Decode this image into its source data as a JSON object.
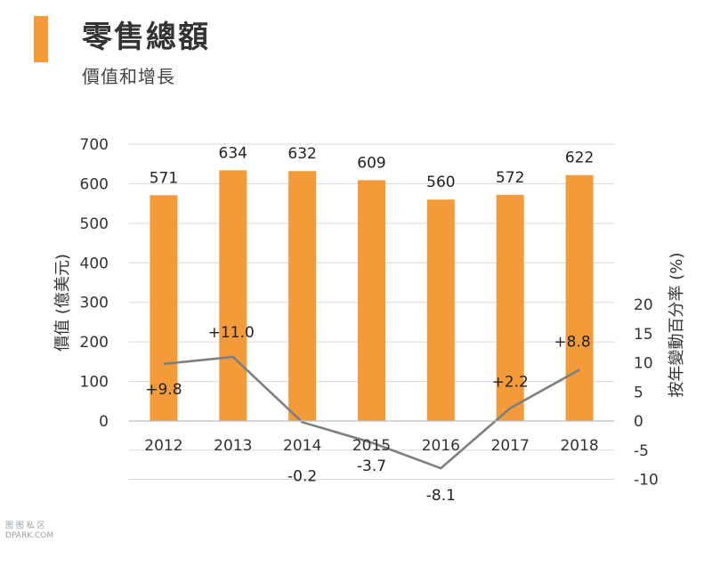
{
  "header": {
    "title": "零售總額",
    "subtitle": "價值和增長",
    "accent_color": "#f39b3b"
  },
  "watermark": {
    "line1": "图 图 私 区",
    "line2": "DPARK.COM"
  },
  "chart_data": {
    "type": "bar",
    "categories": [
      "2012",
      "2013",
      "2014",
      "2015",
      "2016",
      "2017",
      "2018"
    ],
    "series": [
      {
        "name": "價值",
        "type": "bar",
        "axis": "left",
        "values": [
          571,
          634,
          632,
          609,
          560,
          572,
          622
        ],
        "labels": [
          "571",
          "634",
          "632",
          "609",
          "560",
          "572",
          "622"
        ],
        "color": "#f39b3b"
      },
      {
        "name": "按年變動百分率",
        "type": "line",
        "axis": "right",
        "values": [
          9.8,
          11.0,
          -0.2,
          -3.7,
          -8.1,
          2.2,
          8.8
        ],
        "labels": [
          "+9.8",
          "+11.0",
          "-0.2",
          "-3.7",
          "-8.1",
          "+2.2",
          "+8.8"
        ],
        "color": "#7f7f7f"
      }
    ],
    "left_axis": {
      "label": "價值 (億美元)",
      "range": [
        0,
        700
      ],
      "ticks": [
        0,
        100,
        200,
        300,
        400,
        500,
        600,
        700
      ]
    },
    "right_axis": {
      "label": "按年變動百分率 (%)",
      "range": [
        -10,
        25
      ],
      "ticks": [
        "-10",
        "-5",
        "0",
        "5",
        "10",
        "15",
        "20"
      ]
    },
    "grid": true,
    "grid_color": "#d9d9d9"
  }
}
